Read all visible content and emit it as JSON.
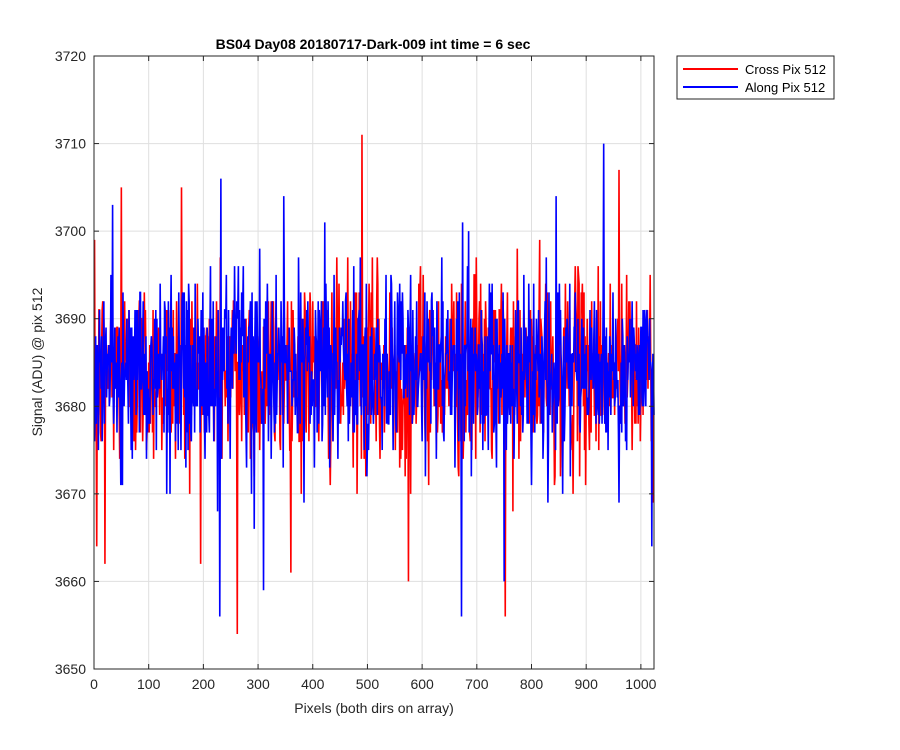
{
  "chart_data": {
    "type": "line",
    "title": "BS04 Day08 20180717-Dark-009 int time = 6 sec",
    "xlabel": "Pixels (both dirs on array)",
    "ylabel": "Signal (ADU) @ pix 512",
    "xlim": [
      0,
      1024
    ],
    "ylim": [
      3650,
      3720
    ],
    "xticks": [
      0,
      100,
      200,
      300,
      400,
      500,
      600,
      700,
      800,
      900,
      1000
    ],
    "yticks": [
      3650,
      3660,
      3670,
      3680,
      3690,
      3700,
      3710,
      3720
    ],
    "grid": true,
    "legend_position": "outside-top-right",
    "series": [
      {
        "name": "Cross Pix 512",
        "color": "#ff0000",
        "mean": 3684,
        "spread": 5.5,
        "min_value": 3654,
        "max_value": 3711,
        "notable_points": [
          [
            5,
            3664
          ],
          [
            20,
            3662
          ],
          [
            50,
            3705
          ],
          [
            160,
            3705
          ],
          [
            262,
            3654
          ],
          [
            490,
            3711
          ],
          [
            575,
            3660
          ],
          [
            752,
            3656
          ],
          [
            960,
            3707
          ]
        ]
      },
      {
        "name": "Along Pix 512",
        "color": "#0000ff",
        "mean": 3684,
        "spread": 5.5,
        "min_value": 3656,
        "max_value": 3710,
        "notable_points": [
          [
            230,
            3656
          ],
          [
            232,
            3706
          ],
          [
            310,
            3659
          ],
          [
            672,
            3656
          ],
          [
            750,
            3660
          ],
          [
            845,
            3704
          ],
          [
            932,
            3710
          ],
          [
            1020,
            3664
          ]
        ]
      }
    ]
  }
}
